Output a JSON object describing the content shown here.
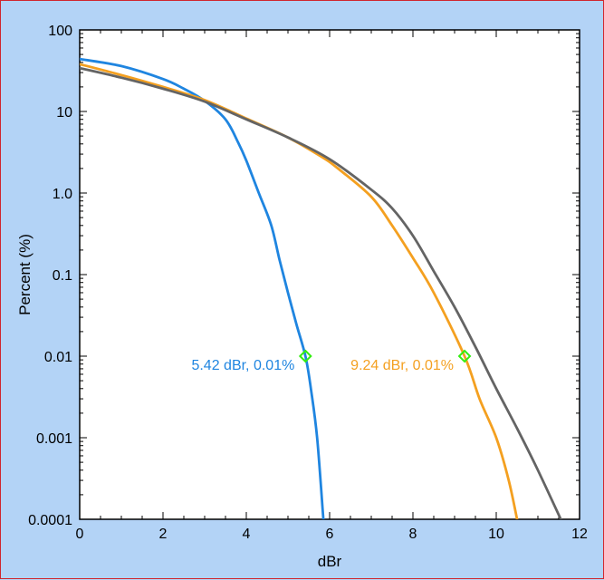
{
  "chart_data": {
    "type": "line",
    "title": "",
    "xlabel": "dBr",
    "ylabel": "Percent (%)",
    "xlim": [
      0,
      12
    ],
    "ylim": [
      0.0001,
      100
    ],
    "yscale": "log",
    "grid": false,
    "x_tick_labels": [
      "0",
      "2",
      "4",
      "6",
      "8",
      "10",
      "12"
    ],
    "y_tick_labels": [
      "0.0001",
      "0.001",
      "0.01",
      "0.1",
      "1.0",
      "10",
      "100"
    ],
    "series": [
      {
        "color": "#1f85e0",
        "points": [
          [
            0,
            44
          ],
          [
            1,
            36
          ],
          [
            2,
            25
          ],
          [
            2.5,
            19
          ],
          [
            3,
            13.5
          ],
          [
            3.5,
            8
          ],
          [
            3.8,
            4.2
          ],
          [
            4,
            2.5
          ],
          [
            4.3,
            1.0
          ],
          [
            4.6,
            0.4
          ],
          [
            4.8,
            0.15
          ],
          [
            5.0,
            0.06
          ],
          [
            5.2,
            0.025
          ],
          [
            5.42,
            0.01
          ],
          [
            5.55,
            0.004
          ],
          [
            5.7,
            0.001
          ],
          [
            5.85,
            0.0001
          ]
        ]
      },
      {
        "color": "#f4a020",
        "points": [
          [
            0,
            38
          ],
          [
            1,
            28
          ],
          [
            2,
            20
          ],
          [
            3,
            13.8
          ],
          [
            4,
            8.2
          ],
          [
            5,
            4.8
          ],
          [
            5.8,
            2.8
          ],
          [
            6.2,
            2.0
          ],
          [
            7,
            0.9
          ],
          [
            7.5,
            0.4
          ],
          [
            8,
            0.16
          ],
          [
            8.5,
            0.06
          ],
          [
            9.24,
            0.01
          ],
          [
            9.6,
            0.003
          ],
          [
            10,
            0.001
          ],
          [
            10.3,
            0.0003
          ],
          [
            10.5,
            0.0001
          ]
        ]
      },
      {
        "color": "#646464",
        "points": [
          [
            0,
            34
          ],
          [
            1,
            26
          ],
          [
            2,
            19
          ],
          [
            3,
            13.2
          ],
          [
            4,
            8.0
          ],
          [
            5,
            4.8
          ],
          [
            6,
            2.6
          ],
          [
            7,
            1.1
          ],
          [
            7.5,
            0.65
          ],
          [
            8,
            0.3
          ],
          [
            8.5,
            0.11
          ],
          [
            9,
            0.04
          ],
          [
            9.5,
            0.013
          ],
          [
            10,
            0.004
          ],
          [
            10.5,
            0.0013
          ],
          [
            11,
            0.0004
          ],
          [
            11.55,
            0.0001
          ]
        ]
      }
    ],
    "annotations": [
      {
        "text": "5.42 dBr, 0.01%",
        "x": 5.42,
        "y": 0.01,
        "color": "#1f85e0",
        "marker_color": "#33ee11",
        "side": "left"
      },
      {
        "text": "9.24 dBr, 0.01%",
        "x": 9.24,
        "y": 0.01,
        "color": "#f4a020",
        "marker_color": "#33ee11",
        "side": "left"
      }
    ]
  }
}
